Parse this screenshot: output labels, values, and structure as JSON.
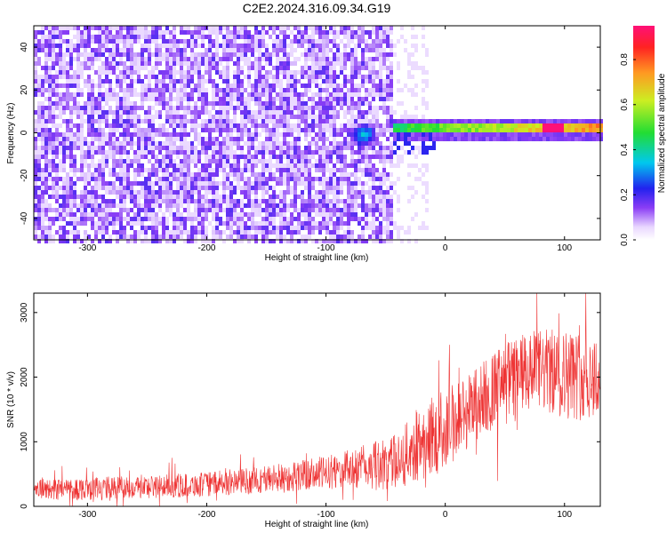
{
  "title": "C2E2.2024.316.09.34.G19",
  "chart_data": [
    {
      "type": "heatmap",
      "xlabel": "Height of straight line (km)",
      "ylabel": "Frequency (Hz)",
      "xlim": [
        -345,
        130
      ],
      "ylim": [
        -50,
        50
      ],
      "xticks": [
        -300,
        -200,
        -100,
        0,
        100
      ],
      "yticks": [
        -40,
        -20,
        0,
        20,
        40
      ],
      "colorbar": {
        "label": "Normalized spectral amplitude",
        "range": [
          0,
          0.95
        ],
        "ticks": [
          0.0,
          0.2,
          0.4,
          0.6,
          0.8
        ]
      },
      "features": [
        {
          "name": "noise-region",
          "x_range": [
            -345,
            -45
          ],
          "y_range": [
            -50,
            50
          ],
          "amplitude": 0.15
        },
        {
          "name": "transition-blob",
          "x": -70,
          "y": 0,
          "amplitude": 0.3
        },
        {
          "name": "carrier-line",
          "x_range": [
            -45,
            130
          ],
          "y": 3,
          "amplitude_start": 0.4,
          "amplitude_end": 0.9
        },
        {
          "name": "carrier-peak",
          "x": 90,
          "y": 3,
          "amplitude": 0.95
        }
      ]
    },
    {
      "type": "line",
      "xlabel": "Height of straight line (km)",
      "ylabel": "SNR (10 * v/v)",
      "xlim": [
        -345,
        130
      ],
      "ylim": [
        0,
        3300
      ],
      "xticks": [
        -300,
        -200,
        -100,
        0,
        100
      ],
      "yticks": [
        0,
        1000,
        2000,
        3000
      ],
      "color": "#ee3333",
      "envelope": [
        {
          "x": -345,
          "mean": 260,
          "spread": 160
        },
        {
          "x": -300,
          "mean": 280,
          "spread": 180
        },
        {
          "x": -250,
          "mean": 300,
          "spread": 180
        },
        {
          "x": -200,
          "mean": 340,
          "spread": 190
        },
        {
          "x": -150,
          "mean": 420,
          "spread": 220
        },
        {
          "x": -100,
          "mean": 520,
          "spread": 260
        },
        {
          "x": -80,
          "mean": 580,
          "spread": 300
        },
        {
          "x": -60,
          "mean": 620,
          "spread": 380
        },
        {
          "x": -40,
          "mean": 700,
          "spread": 420
        },
        {
          "x": -20,
          "mean": 1000,
          "spread": 600
        },
        {
          "x": 0,
          "mean": 1200,
          "spread": 650
        },
        {
          "x": 20,
          "mean": 1500,
          "spread": 600
        },
        {
          "x": 40,
          "mean": 1800,
          "spread": 600
        },
        {
          "x": 60,
          "mean": 2000,
          "spread": 650
        },
        {
          "x": 80,
          "mean": 2100,
          "spread": 650
        },
        {
          "x": 100,
          "mean": 2050,
          "spread": 700
        },
        {
          "x": 130,
          "mean": 2000,
          "spread": 700
        }
      ]
    }
  ]
}
